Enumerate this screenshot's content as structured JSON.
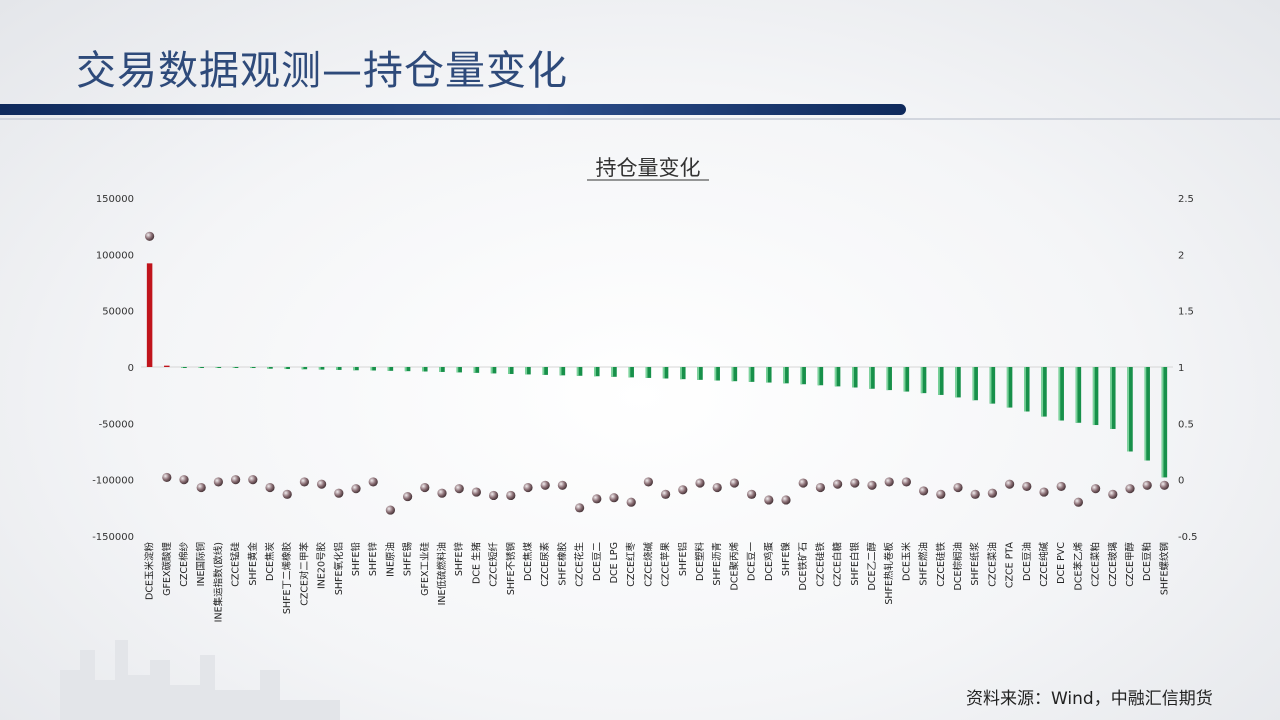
{
  "page": {
    "title": "交易数据观测—持仓量变化",
    "source": "资料来源：Wind，中融汇信期货"
  },
  "colors": {
    "positive": "#c0141c",
    "negative": "#17904a",
    "marker": "#8a6e74",
    "title": "#2e4a7a"
  },
  "chart_data": {
    "type": "bar",
    "title": "持仓量变化",
    "ylim": [
      -150000,
      150000
    ],
    "yticks": [
      150000,
      100000,
      50000,
      0,
      -50000,
      -100000,
      -150000
    ],
    "y2lim": [
      -0.5,
      2.5
    ],
    "y2ticks": [
      "2.5",
      "2",
      "1.5",
      "1",
      "0.5",
      "0",
      "-0.5"
    ],
    "grid": false,
    "legend": "none",
    "categories": [
      "DCE玉米淀粉",
      "GFEX碳酸锂",
      "CZCE棉纱",
      "INE国际铜",
      "INE集运指数(欧线)",
      "CZCE锰硅",
      "SHFE黄金",
      "DCE焦炭",
      "SHFE丁二烯橡胶",
      "CZCE对二甲苯",
      "INE20号胶",
      "SHFE氧化铝",
      "SHFE铅",
      "SHFE锌",
      "INE原油",
      "SHFE锡",
      "GFEX工业硅",
      "INE低硫燃料油",
      "SHFE锌",
      "DCE 生猪",
      "CZCE短纤",
      "SHFE不锈钢",
      "DCE焦煤",
      "CZCE尿素",
      "SHFE橡胶",
      "CZCE花生",
      "DCE豆二",
      "DCE LPG",
      "CZCE红枣",
      "CZCE烧碱",
      "CZCE苹果",
      "SHFE铝",
      "DCE塑料",
      "SHFE沥青",
      "DCE聚丙烯",
      "DCE豆一",
      "DCE鸡蛋",
      "SHFE镍",
      "DCE铁矿石",
      "CZCE硅铁",
      "CZCE白糖",
      "SHFE白银",
      "DCE乙二醇",
      "SHFE热轧卷板",
      "DCE玉米",
      "SHFE燃油",
      "CZCE硅铁",
      "DCE棕榈油",
      "SHFE纸浆",
      "CZCE菜油",
      "CZCE PTA",
      "DCE豆油",
      "CZCE纯碱",
      "DCE PVC",
      "DCE苯乙烯",
      "CZCE菜粕",
      "CZCE玻璃",
      "CZCE甲醇",
      "DCE豆粕",
      "SHFE螺纹钢"
    ],
    "series": [
      {
        "type": "bar",
        "axis": "left",
        "values": [
          92000,
          1200,
          -500,
          -600,
          -700,
          -800,
          -900,
          -1500,
          -1800,
          -2000,
          -2300,
          -2600,
          -2900,
          -3100,
          -3400,
          -3700,
          -4000,
          -4400,
          -4800,
          -5200,
          -5700,
          -6200,
          -6600,
          -7000,
          -7400,
          -7800,
          -8200,
          -8700,
          -9200,
          -9700,
          -10200,
          -10800,
          -11400,
          -12000,
          -12600,
          -13200,
          -13800,
          -14500,
          -15300,
          -16200,
          -17200,
          -18200,
          -19300,
          -20500,
          -21800,
          -23200,
          -24800,
          -27000,
          -29500,
          -32500,
          -36000,
          -39500,
          -44000,
          -47500,
          -49500,
          -51500,
          -55000,
          -75000,
          -83000,
          -98000
        ]
      },
      {
        "type": "scatter",
        "axis": "right",
        "values": [
          2.16,
          0.02,
          0.0,
          -0.07,
          -0.02,
          0.0,
          0.0,
          -0.07,
          -0.13,
          -0.02,
          -0.04,
          -0.12,
          -0.08,
          -0.02,
          -0.27,
          -0.15,
          -0.07,
          -0.12,
          -0.08,
          -0.11,
          -0.14,
          -0.14,
          -0.07,
          -0.05,
          -0.05,
          -0.25,
          -0.17,
          -0.16,
          -0.2,
          -0.02,
          -0.13,
          -0.09,
          -0.03,
          -0.07,
          -0.03,
          -0.13,
          -0.18,
          -0.18,
          -0.03,
          -0.07,
          -0.04,
          -0.03,
          -0.05,
          -0.02,
          -0.02,
          -0.1,
          -0.13,
          -0.07,
          -0.13,
          -0.12,
          -0.04,
          -0.06,
          -0.11,
          -0.06,
          -0.2,
          -0.08,
          -0.13,
          -0.08,
          -0.05,
          -0.05
        ]
      }
    ]
  }
}
